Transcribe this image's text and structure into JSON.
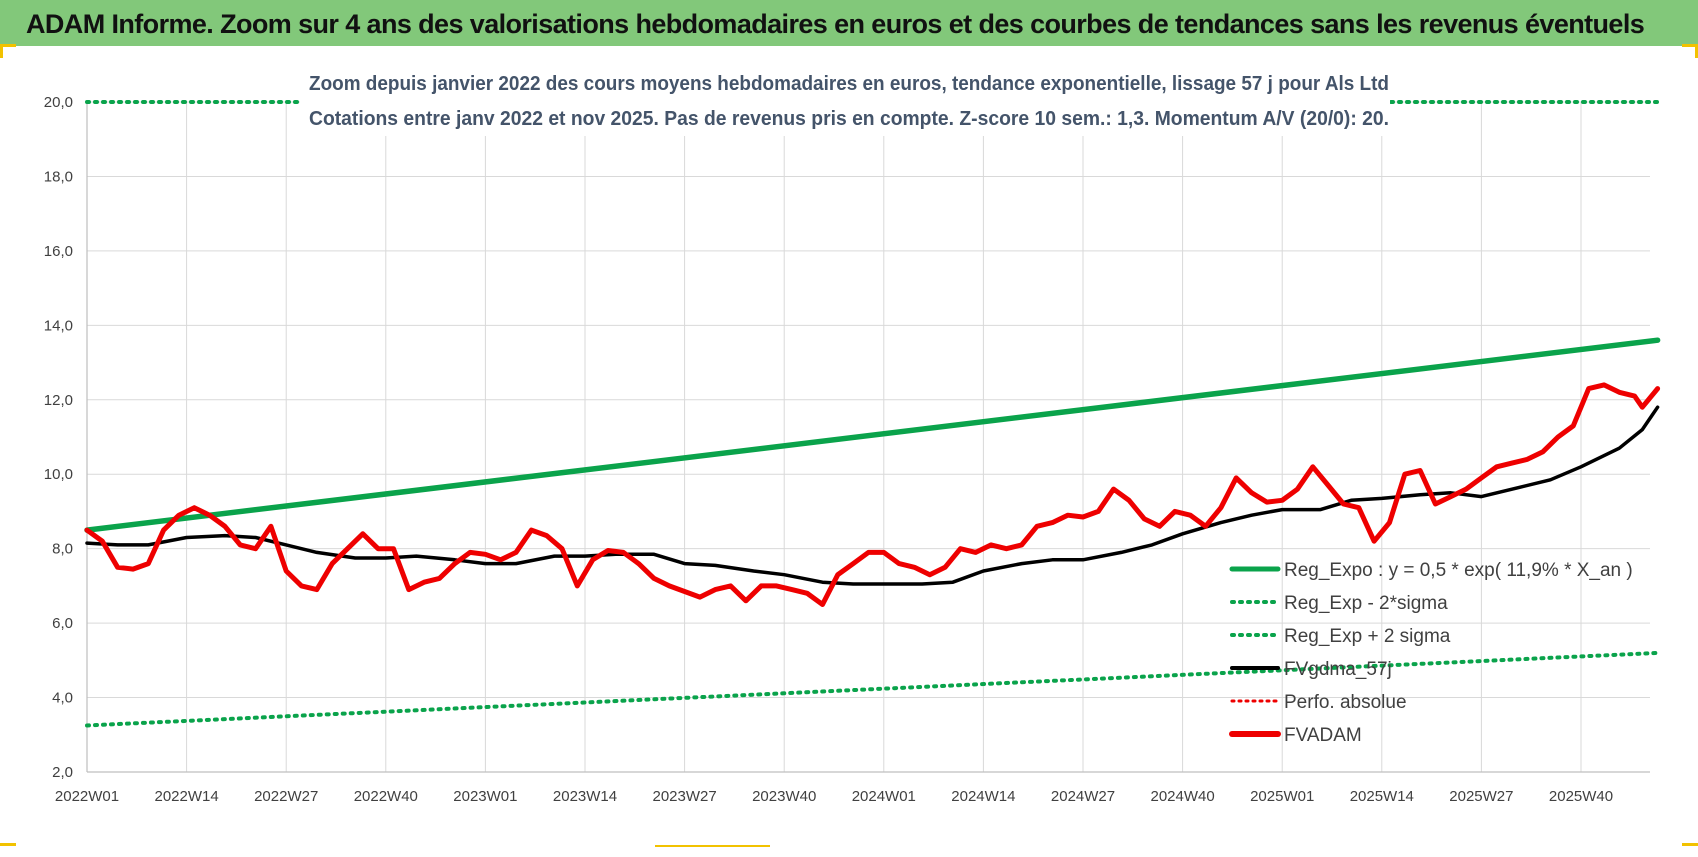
{
  "page_title": "ADAM Informe. Zoom sur 4 ans des valorisations hebdomadaires en euros et des courbes de tendances sans les revenus éventuels",
  "colors": {
    "banner": "#82c87a",
    "trend_green": "#0aa34b",
    "red_series": "#ee0000",
    "black_series": "#000000",
    "grid": "#d9d9d9",
    "axis_text": "#404040"
  },
  "chart_data": {
    "type": "line",
    "title_line1": "Zoom depuis janvier 2022 des cours moyens hebdomadaires en euros, tendance exponentielle, lissage 57 j pour Als Ltd",
    "title_line2": "Cotations entre janv 2022 et nov 2025. Pas de revenus pris en compte. Z-score 10 sem.: 1,3. Momentum A/V (20/0): 20.",
    "x_tick_labels": [
      "2022W01",
      "2022W14",
      "2022W27",
      "2022W40",
      "2023W01",
      "2023W14",
      "2023W27",
      "2023W40",
      "2024W01",
      "2024W14",
      "2024W27",
      "2024W40",
      "2025W01",
      "2025W14",
      "2025W27",
      "2025W40"
    ],
    "y_tick_labels": [
      "2,0",
      "4,0",
      "6,0",
      "8,0",
      "10,0",
      "12,0",
      "14,0",
      "16,0",
      "18,0",
      "20,0"
    ],
    "ylim": [
      2,
      20
    ],
    "n_weeks": 206,
    "legend": [
      {
        "name": "Reg_Expo : y = 0,5 * exp( 11,9% *  X_an )",
        "style": "solid-green"
      },
      {
        "name": "Reg_Exp - 2*sigma",
        "style": "dotted-green"
      },
      {
        "name": "Reg_Exp + 2 sigma",
        "style": "dotted-green"
      },
      {
        "name": "FVgdma_57j",
        "style": "solid-black"
      },
      {
        "name": "Perfo. absolue",
        "style": "dotted-red"
      },
      {
        "name": "FVADAM",
        "style": "solid-red"
      }
    ],
    "series": [
      {
        "name": "Reg_Expo",
        "x": [
          0,
          205
        ],
        "y": [
          8.5,
          13.6
        ]
      },
      {
        "name": "Reg_Exp - 2*sigma",
        "x": [
          0,
          205
        ],
        "y": [
          3.25,
          5.2
        ]
      },
      {
        "name": "Reg_Exp + 2 sigma",
        "x": [
          0,
          205
        ],
        "y": [
          20.0,
          20.0
        ]
      },
      {
        "name": "FVgdma_57j",
        "x": [
          0,
          4,
          8,
          13,
          18,
          22,
          26,
          30,
          35,
          39,
          43,
          48,
          52,
          56,
          61,
          65,
          69,
          74,
          78,
          82,
          87,
          91,
          96,
          100,
          104,
          109,
          113,
          117,
          122,
          126,
          130,
          135,
          139,
          143,
          148,
          152,
          156,
          161,
          165,
          169,
          174,
          178,
          182,
          187,
          191,
          195,
          200,
          203,
          205
        ],
        "y": [
          8.15,
          8.1,
          8.1,
          8.3,
          8.35,
          8.3,
          8.1,
          7.9,
          7.75,
          7.75,
          7.8,
          7.7,
          7.6,
          7.6,
          7.8,
          7.8,
          7.85,
          7.85,
          7.6,
          7.55,
          7.4,
          7.3,
          7.1,
          7.05,
          7.05,
          7.05,
          7.1,
          7.4,
          7.6,
          7.7,
          7.7,
          7.9,
          8.1,
          8.4,
          8.7,
          8.9,
          9.05,
          9.05,
          9.3,
          9.35,
          9.45,
          9.5,
          9.4,
          9.65,
          9.85,
          10.2,
          10.7,
          11.2,
          11.8
        ]
      },
      {
        "name": "FVADAM",
        "x": [
          0,
          2,
          4,
          6,
          8,
          10,
          12,
          14,
          16,
          18,
          20,
          22,
          24,
          26,
          28,
          30,
          32,
          34,
          36,
          38,
          40,
          42,
          44,
          46,
          48,
          50,
          52,
          54,
          56,
          58,
          60,
          62,
          64,
          66,
          68,
          70,
          72,
          74,
          76,
          78,
          80,
          82,
          84,
          86,
          88,
          90,
          92,
          94,
          96,
          98,
          100,
          102,
          104,
          106,
          108,
          110,
          112,
          114,
          116,
          118,
          120,
          122,
          124,
          126,
          128,
          130,
          132,
          134,
          136,
          138,
          140,
          142,
          144,
          146,
          148,
          150,
          152,
          154,
          156,
          158,
          160,
          162,
          164,
          166,
          168,
          170,
          172,
          174,
          176,
          178,
          180,
          182,
          184,
          186,
          188,
          190,
          192,
          194,
          196,
          198,
          200,
          202,
          203,
          205
        ],
        "y": [
          8.5,
          8.2,
          7.5,
          7.45,
          7.6,
          8.5,
          8.9,
          9.1,
          8.9,
          8.6,
          8.1,
          8.0,
          8.6,
          7.4,
          7.0,
          6.9,
          7.6,
          8.0,
          8.4,
          8.0,
          8.0,
          6.9,
          7.1,
          7.2,
          7.6,
          7.9,
          7.85,
          7.7,
          7.9,
          8.5,
          8.35,
          8.0,
          7.0,
          7.7,
          7.95,
          7.9,
          7.6,
          7.2,
          7.0,
          6.85,
          6.7,
          6.9,
          7.0,
          6.6,
          7.0,
          7.0,
          6.9,
          6.8,
          6.5,
          7.3,
          7.6,
          7.9,
          7.9,
          7.6,
          7.5,
          7.3,
          7.5,
          8.0,
          7.9,
          8.1,
          8.0,
          8.1,
          8.6,
          8.7,
          8.9,
          8.85,
          9.0,
          9.6,
          9.3,
          8.8,
          8.6,
          9.0,
          8.9,
          8.6,
          9.1,
          9.9,
          9.5,
          9.25,
          9.3,
          9.6,
          10.2,
          9.7,
          9.2,
          9.1,
          8.2,
          8.7,
          10.0,
          10.1,
          9.2,
          9.4,
          9.6,
          9.9,
          10.2,
          10.3,
          10.4,
          10.6,
          11.0,
          11.3,
          12.3,
          12.4,
          12.2,
          12.1,
          11.8,
          12.3
        ]
      }
    ]
  }
}
